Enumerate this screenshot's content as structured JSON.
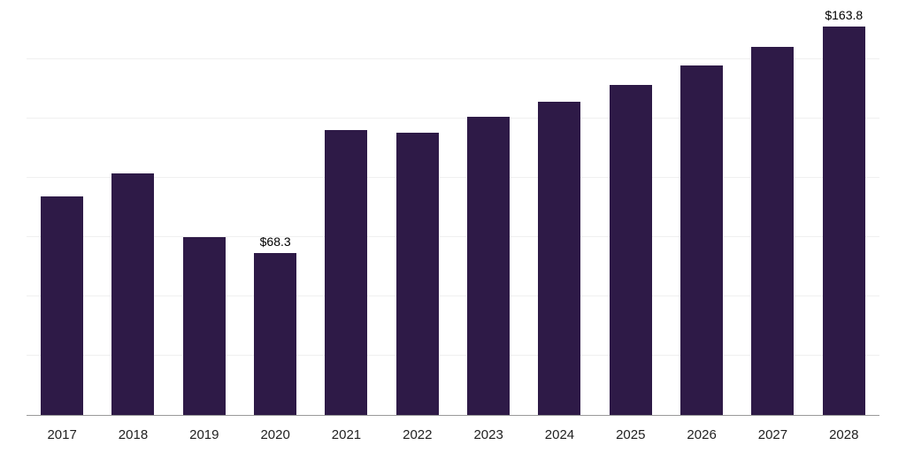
{
  "chart_data": {
    "type": "bar",
    "title": "",
    "xlabel": "",
    "ylabel": "",
    "categories": [
      "2017",
      "2018",
      "2019",
      "2020",
      "2021",
      "2022",
      "2023",
      "2024",
      "2025",
      "2026",
      "2027",
      "2028"
    ],
    "values": [
      92.2,
      101.9,
      75.0,
      68.3,
      120.1,
      119.0,
      125.7,
      132.1,
      139.2,
      147.4,
      155.2,
      163.8
    ],
    "data_labels": [
      {
        "index": 3,
        "text": "$68.3"
      },
      {
        "index": 11,
        "text": "$163.8"
      }
    ],
    "ylim": [
      0,
      175
    ],
    "gridline_step": 25,
    "grid": "horizontal",
    "legend_position": "none"
  },
  "colors": {
    "bar": "#2e1a47",
    "gridline": "#f0f0f0",
    "axis_line": "#9a9a9a",
    "axis_text": "#1f1f1f",
    "value_label_text": "#000000",
    "background": "#ffffff"
  }
}
